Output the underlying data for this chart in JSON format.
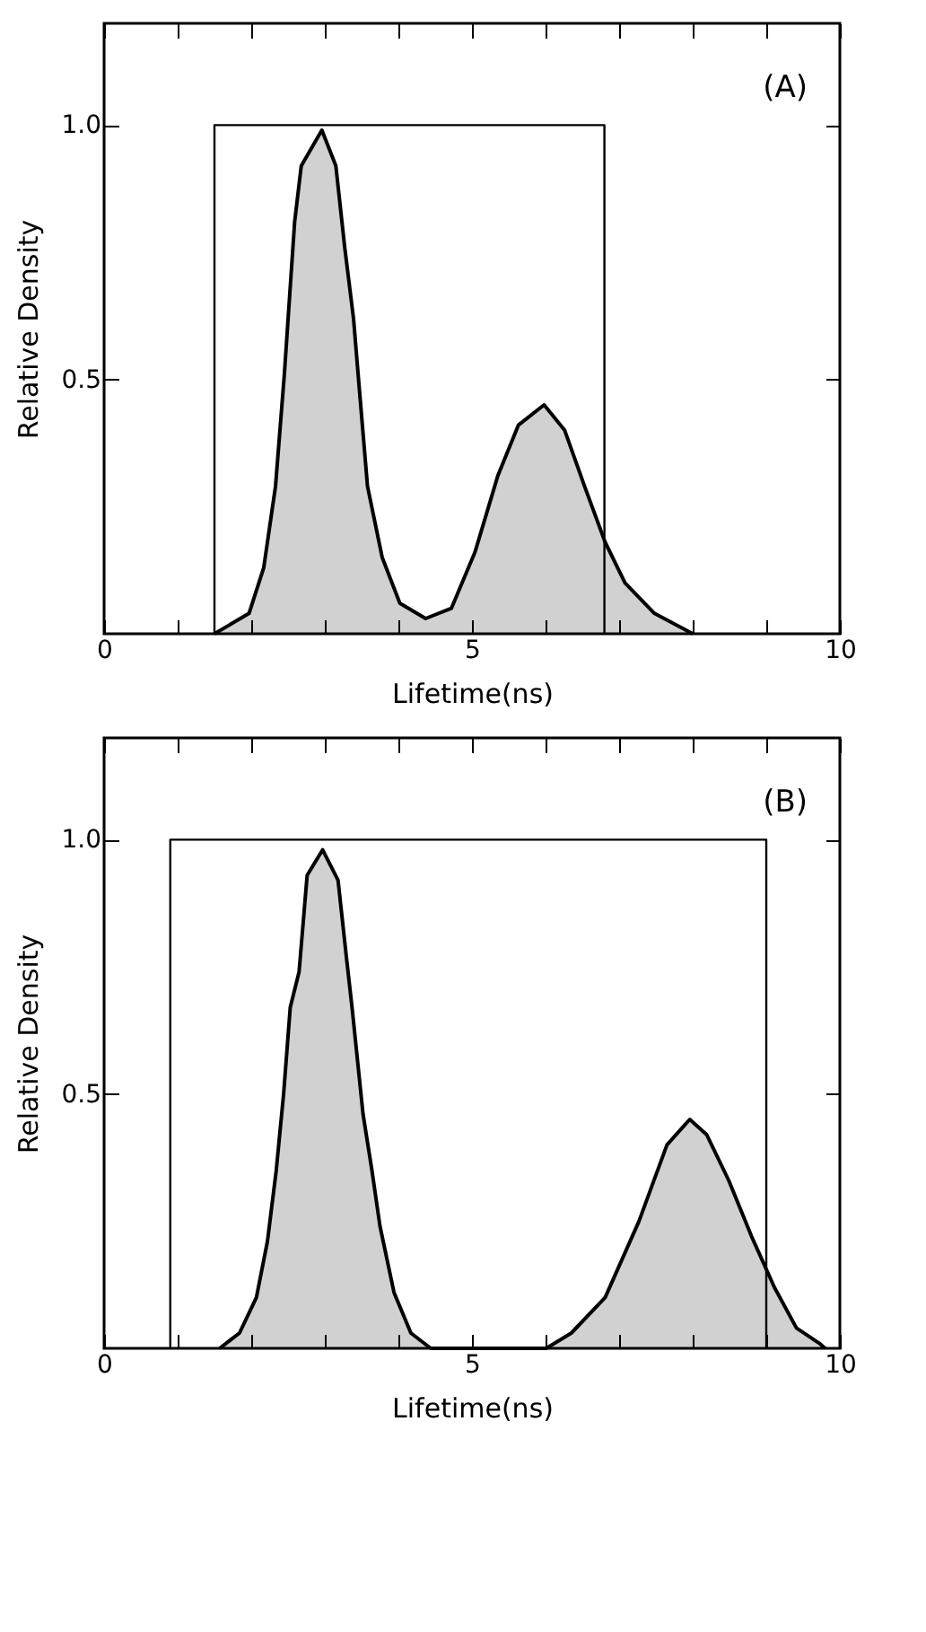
{
  "chart_data": [
    {
      "type": "line",
      "annotations": [
        "(A)"
      ],
      "xlabel": "Lifetime(ns)",
      "ylabel": "Relative Density",
      "xlim": [
        0,
        10
      ],
      "ylim": [
        0,
        1.2
      ],
      "xticks": [
        0,
        {
          "value": 1,
          "label": null
        },
        {
          "value": 2,
          "label": null
        },
        {
          "value": 3,
          "label": null
        },
        {
          "value": 4,
          "label": null
        },
        5,
        {
          "value": 6,
          "label": null
        },
        {
          "value": 7,
          "label": null
        },
        {
          "value": 8,
          "label": null
        },
        {
          "value": 9,
          "label": null
        },
        10
      ],
      "yticks": [
        0.5,
        {
          "value": 1,
          "label": "1.0"
        }
      ],
      "grid": false,
      "marker": "none",
      "series": [
        {
          "type": "line",
          "color": "#000000",
          "x": [
            1.5,
            1.5,
            6.8,
            6.8
          ],
          "values": [
            0,
            1,
            1,
            0
          ]
        },
        {
          "type": "area",
          "color": "#000000",
          "x": [
            1.5,
            1.97,
            2.17,
            2.33,
            2.45,
            2.59,
            2.68,
            2.96,
            3.15,
            3.27,
            3.39,
            3.47,
            3.58,
            3.78,
            4.02,
            4.37,
            4.72,
            5.04,
            5.35,
            5.63,
            5.98,
            6.26,
            6.53,
            6.81,
            7.08,
            7.48,
            7.87,
            8.0
          ],
          "values": [
            0,
            0.04,
            0.13,
            0.29,
            0.51,
            0.81,
            0.92,
            0.99,
            0.92,
            0.76,
            0.62,
            0.48,
            0.29,
            0.15,
            0.06,
            0.03,
            0.05,
            0.16,
            0.31,
            0.41,
            0.45,
            0.4,
            0.29,
            0.18,
            0.1,
            0.04,
            0.01,
            0
          ]
        }
      ]
    },
    {
      "type": "line",
      "annotations": [
        "(B)"
      ],
      "xlabel": "Lifetime(ns)",
      "ylabel": "Relative Density",
      "xlim": [
        0,
        10
      ],
      "ylim": [
        0,
        1.2
      ],
      "xticks": [
        0,
        {
          "value": 1,
          "label": null
        },
        {
          "value": 2,
          "label": null
        },
        {
          "value": 3,
          "label": null
        },
        {
          "value": 4,
          "label": null
        },
        5,
        {
          "value": 6,
          "label": null
        },
        {
          "value": 7,
          "label": null
        },
        {
          "value": 8,
          "label": null
        },
        {
          "value": 9,
          "label": null
        },
        10
      ],
      "yticks": [
        0.5,
        {
          "value": 1,
          "label": "1.0"
        }
      ],
      "grid": false,
      "marker": "none",
      "series": [
        {
          "type": "line",
          "color": "#000000",
          "x": [
            0.9,
            0.9,
            9.0,
            9.0
          ],
          "values": [
            0,
            1,
            1,
            0
          ]
        },
        {
          "type": "area",
          "color": "#000000",
          "x": [
            1.57,
            1.84,
            2.07,
            2.22,
            2.34,
            2.44,
            2.53,
            2.65,
            2.76,
            2.97,
            3.18,
            3.3,
            3.37,
            3.52,
            3.64,
            3.75,
            3.94,
            4.17,
            4.44,
            6.01,
            6.35,
            6.81,
            7.27,
            7.65,
            7.96,
            8.19,
            8.49,
            8.8,
            9.11,
            9.41,
            9.72,
            9.8
          ],
          "values": [
            0,
            0.03,
            0.1,
            0.21,
            0.35,
            0.5,
            0.67,
            0.74,
            0.93,
            0.98,
            0.92,
            0.76,
            0.67,
            0.46,
            0.35,
            0.24,
            0.11,
            0.03,
            0,
            0,
            0.03,
            0.1,
            0.25,
            0.4,
            0.45,
            0.42,
            0.33,
            0.22,
            0.12,
            0.04,
            0.01,
            0
          ]
        }
      ]
    }
  ]
}
